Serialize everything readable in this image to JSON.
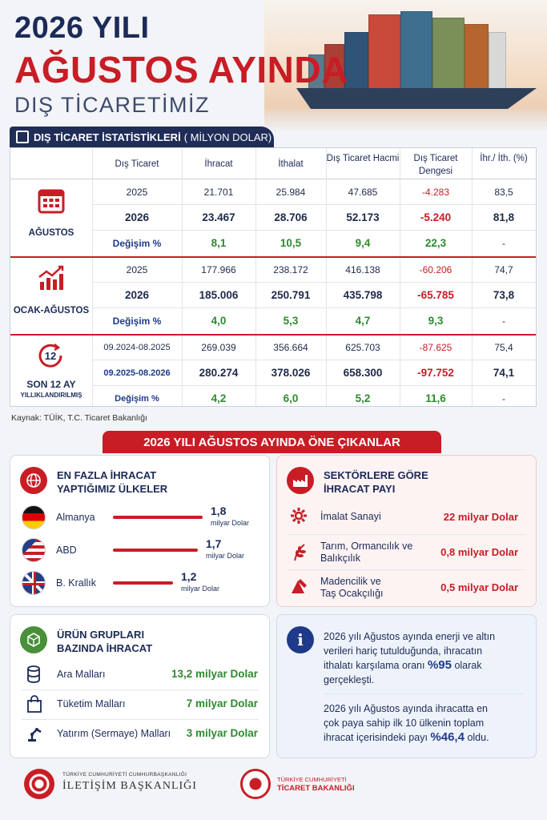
{
  "header": {
    "line1": "2026 YILI",
    "line2": "AĞUSTOS AYINDA",
    "line3": "DIŞ TİCARETİMİZ"
  },
  "table": {
    "title": "DIŞ TİCARET İSTATİSTİKLERİ",
    "unit": "( MİLYON DOLAR)",
    "columns": [
      "Dış Ticaret",
      "İhracat",
      "İthalat",
      "Dış Ticaret Hacmi",
      "Dış Ticaret Dengesi",
      "İhr./ İth. (%)"
    ],
    "groups": [
      {
        "name": "AĞUSTOS",
        "sub": "",
        "rows": [
          [
            "2025",
            "21.701",
            "25.984",
            "47.685",
            "-4.283",
            "83,5"
          ],
          [
            "2026",
            "23.467",
            "28.706",
            "52.173",
            "-5.240",
            "81,8"
          ],
          [
            "Değişim %",
            "8,1",
            "10,5",
            "9,4",
            "22,3",
            "-"
          ]
        ]
      },
      {
        "name": "OCAK-AĞUSTOS",
        "sub": "",
        "rows": [
          [
            "2025",
            "177.966",
            "238.172",
            "416.138",
            "-60.206",
            "74,7"
          ],
          [
            "2026",
            "185.006",
            "250.791",
            "435.798",
            "-65.785",
            "73,8"
          ],
          [
            "Değişim %",
            "4,0",
            "5,3",
            "4,7",
            "9,3",
            "-"
          ]
        ]
      },
      {
        "name": "SON 12 AY",
        "sub": "YILLIKLANDIRILMIŞ",
        "badge": "12",
        "rows": [
          [
            "09.2024-08.2025",
            "269.039",
            "356.664",
            "625.703",
            "-87.625",
            "75,4"
          ],
          [
            "09.2025-08.2026",
            "280.274",
            "378.026",
            "658.300",
            "-97.752",
            "74,1"
          ],
          [
            "Değişim %",
            "4,2",
            "6,0",
            "5,2",
            "11,6",
            "-"
          ]
        ]
      }
    ],
    "source": "Kaynak: TÜİK, T.C. Ticaret Bakanlığı"
  },
  "highlights": {
    "banner": "2026 YILI AĞUSTOS AYINDA ÖNE ÇIKANLAR",
    "countries": {
      "title1": "EN FAZLA İHRACAT",
      "title2": "YAPTIĞIMIZ ÜLKELER",
      "items": [
        {
          "name": "Almanya",
          "value": "1,8",
          "unit": "milyar Dolar",
          "share": 1.8
        },
        {
          "name": "ABD",
          "value": "1,7",
          "unit": "milyar Dolar",
          "share": 1.7
        },
        {
          "name": "B. Krallık",
          "value": "1,2",
          "unit": "milyar Dolar",
          "share": 1.2
        }
      ]
    },
    "sectors": {
      "title1": "SEKTÖRLERE GÖRE",
      "title2": "İHRACAT PAYI",
      "items": [
        {
          "l1": "İmalat Sanayi",
          "l2": "",
          "value": "22 milyar Dolar",
          "icon": "gear-icon"
        },
        {
          "l1": "Tarım, Ormancılık ve",
          "l2": "Balıkçılık",
          "value": "0,8 milyar Dolar",
          "icon": "wheat-icon"
        },
        {
          "l1": "Madencilik ve",
          "l2": "Taş Ocakçılığı",
          "value": "0,5 milyar Dolar",
          "icon": "mining-icon"
        }
      ]
    },
    "products": {
      "title1": "ÜRÜN GRUPLARI",
      "title2": "BAZINDA İHRACAT",
      "items": [
        {
          "name": "Ara Malları",
          "value": "13,2 milyar Dolar",
          "icon": "database-icon"
        },
        {
          "name": "Tüketim Malları",
          "value": "7 milyar Dolar",
          "icon": "shopping-bag-icon"
        },
        {
          "name": "Yatırım (Sermaye) Malları",
          "value": "3 milyar Dolar",
          "icon": "robot-arm-icon"
        }
      ]
    },
    "info": {
      "p1a": "2026 yılı Ağustos ayında enerji ve altın",
      "p1b": "verileri hariç tutulduğunda, ihracatın",
      "p1c": "ithalatı karşılama oranı",
      "p1v": "%95",
      "p1d": "olarak",
      "p1e": "gerçekleşti.",
      "p2a": "2026 yılı Ağustos ayında ihracatta en",
      "p2b": "çok paya sahip ilk 10 ülkenin toplam",
      "p2c": "ihracat içerisindeki payı",
      "p2v": "%46,4",
      "p2d": "oldu."
    }
  },
  "footer": {
    "left_small": "TÜRKİYE CUMHURİYETİ CUMHURBAŞKANLIĞI",
    "left_big": "İLETİŞİM BAŞKANLIĞI",
    "right_small": "TÜRKİYE CUMHURİYETİ",
    "right_big": "TİCARET BAKANLIĞI"
  },
  "colors": {
    "navy": "#1c2a57",
    "red": "#c81d25",
    "green": "#2f8a2f"
  }
}
